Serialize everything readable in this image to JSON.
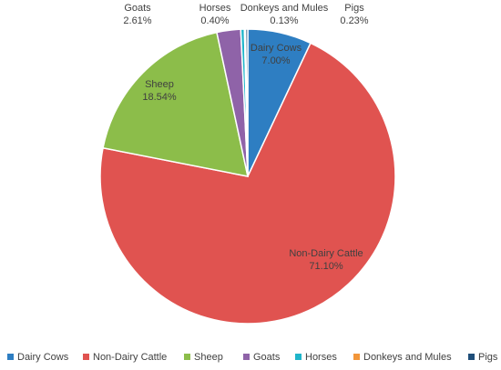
{
  "chart_data": {
    "type": "pie",
    "title": "",
    "start_angle_deg": 0,
    "direction": "clockwise",
    "legend_position": "bottom",
    "slices": [
      {
        "label": "Dairy Cows",
        "value": 7.0,
        "value_label": "7.00%",
        "color": "#2E7EC2"
      },
      {
        "label": "Non-Dairy Cattle",
        "value": 71.1,
        "value_label": "71.10%",
        "color": "#E05350"
      },
      {
        "label": "Sheep",
        "value": 18.54,
        "value_label": "18.54%",
        "color": "#8CBD4A"
      },
      {
        "label": "Goats",
        "value": 2.61,
        "value_label": "2.61%",
        "color": "#8F63A8"
      },
      {
        "label": "Horses",
        "value": 0.4,
        "value_label": "0.40%",
        "color": "#1FB5CA"
      },
      {
        "label": "Donkeys and Mules",
        "value": 0.13,
        "value_label": "0.13%",
        "color": "#F2963A"
      },
      {
        "label": "Pigs",
        "value": 0.23,
        "value_label": "0.23%",
        "color": "#1F4E79"
      }
    ]
  }
}
